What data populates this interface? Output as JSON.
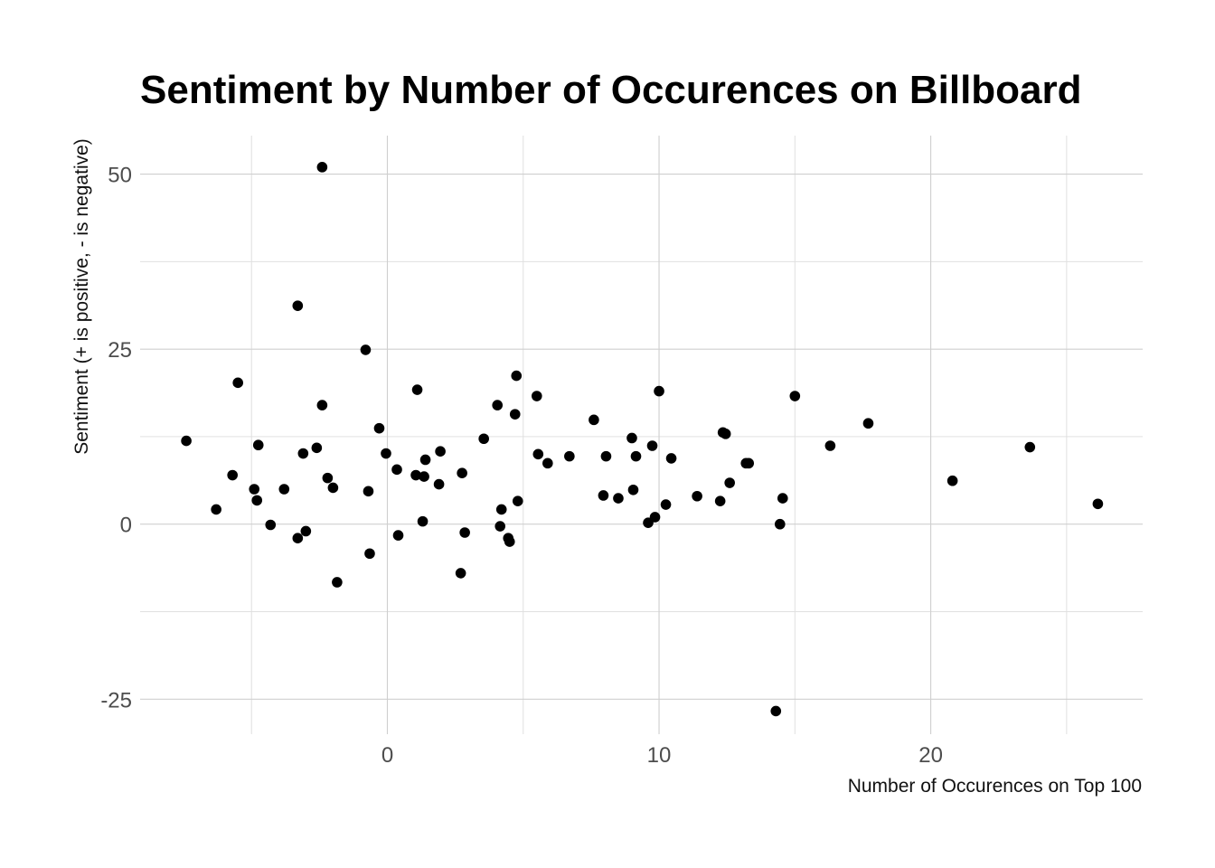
{
  "colors": {
    "background": "#ffffff",
    "points": "#000000",
    "grid": "#cfcfcf",
    "tick_text": "#4d4d4d"
  },
  "chart_data": {
    "type": "scatter",
    "title": "Sentiment by Number of Occurences on Billboard",
    "xlabel": "Number of Occurences on Top 100",
    "ylabel": "Sentiment (+ is positive, - is negative)",
    "xlim": [
      -9.1,
      27.8
    ],
    "ylim": [
      -30,
      55.5
    ],
    "x_ticks": [
      0,
      10,
      20
    ],
    "x_tick_labels": [
      "0",
      "10",
      "20"
    ],
    "x_minor_ticks": [
      -5,
      5,
      15,
      25
    ],
    "y_ticks": [
      -25,
      0,
      25,
      50
    ],
    "y_tick_labels": [
      "-25",
      "0",
      "25",
      "50"
    ],
    "y_minor_ticks": [
      -12.5,
      12.5,
      37.5
    ],
    "grid": true,
    "legend": "none",
    "points": [
      {
        "x": -7.4,
        "y": 11.9
      },
      {
        "x": -6.3,
        "y": 2.1
      },
      {
        "x": -5.7,
        "y": 7.0
      },
      {
        "x": -5.5,
        "y": 20.2
      },
      {
        "x": -4.9,
        "y": 5.0
      },
      {
        "x": -4.8,
        "y": 3.4
      },
      {
        "x": -4.75,
        "y": 11.3
      },
      {
        "x": -4.3,
        "y": -0.1
      },
      {
        "x": -3.8,
        "y": 5.0
      },
      {
        "x": -3.3,
        "y": -2.0
      },
      {
        "x": -3.3,
        "y": 31.2
      },
      {
        "x": -3.1,
        "y": 10.1
      },
      {
        "x": -3.0,
        "y": -1.0
      },
      {
        "x": -2.6,
        "y": 10.9
      },
      {
        "x": -2.4,
        "y": 17.0
      },
      {
        "x": -2.4,
        "y": 51.0
      },
      {
        "x": -2.2,
        "y": 6.6
      },
      {
        "x": -2.0,
        "y": 5.2
      },
      {
        "x": -1.85,
        "y": -8.3
      },
      {
        "x": -0.8,
        "y": 24.9
      },
      {
        "x": -0.7,
        "y": 4.7
      },
      {
        "x": -0.65,
        "y": -4.2
      },
      {
        "x": -0.3,
        "y": 13.7
      },
      {
        "x": -0.05,
        "y": 10.1
      },
      {
        "x": 0.35,
        "y": 7.8
      },
      {
        "x": 0.4,
        "y": -1.6
      },
      {
        "x": 1.05,
        "y": 7.0
      },
      {
        "x": 1.1,
        "y": 19.2
      },
      {
        "x": 1.3,
        "y": 0.4
      },
      {
        "x": 1.35,
        "y": 6.8
      },
      {
        "x": 1.4,
        "y": 9.2
      },
      {
        "x": 1.9,
        "y": 5.7
      },
      {
        "x": 1.95,
        "y": 10.4
      },
      {
        "x": 2.7,
        "y": -7.0
      },
      {
        "x": 2.75,
        "y": 7.3
      },
      {
        "x": 2.85,
        "y": -1.2
      },
      {
        "x": 3.55,
        "y": 12.2
      },
      {
        "x": 4.05,
        "y": 17.0
      },
      {
        "x": 4.15,
        "y": -0.3
      },
      {
        "x": 4.2,
        "y": 2.1
      },
      {
        "x": 4.45,
        "y": -2.0
      },
      {
        "x": 4.5,
        "y": -2.5
      },
      {
        "x": 4.7,
        "y": 15.7
      },
      {
        "x": 4.75,
        "y": 21.2
      },
      {
        "x": 4.8,
        "y": 3.3
      },
      {
        "x": 5.5,
        "y": 18.3
      },
      {
        "x": 5.55,
        "y": 10.0
      },
      {
        "x": 5.9,
        "y": 8.7
      },
      {
        "x": 6.7,
        "y": 9.7
      },
      {
        "x": 7.6,
        "y": 14.9
      },
      {
        "x": 7.95,
        "y": 4.1
      },
      {
        "x": 8.05,
        "y": 9.7
      },
      {
        "x": 8.5,
        "y": 3.7
      },
      {
        "x": 9.0,
        "y": 12.3
      },
      {
        "x": 9.05,
        "y": 4.9
      },
      {
        "x": 9.15,
        "y": 9.7
      },
      {
        "x": 9.6,
        "y": 0.2
      },
      {
        "x": 9.75,
        "y": 11.2
      },
      {
        "x": 9.85,
        "y": 1.0
      },
      {
        "x": 10.0,
        "y": 19.0
      },
      {
        "x": 10.25,
        "y": 2.8
      },
      {
        "x": 10.45,
        "y": 9.4
      },
      {
        "x": 11.4,
        "y": 4.0
      },
      {
        "x": 12.25,
        "y": 3.3
      },
      {
        "x": 12.35,
        "y": 13.1
      },
      {
        "x": 12.45,
        "y": 12.9
      },
      {
        "x": 12.6,
        "y": 5.9
      },
      {
        "x": 13.2,
        "y": 8.7
      },
      {
        "x": 13.3,
        "y": 8.7
      },
      {
        "x": 14.3,
        "y": -26.7
      },
      {
        "x": 14.45,
        "y": 0.0
      },
      {
        "x": 14.55,
        "y": 3.7
      },
      {
        "x": 15.0,
        "y": 18.3
      },
      {
        "x": 16.3,
        "y": 11.2
      },
      {
        "x": 17.7,
        "y": 14.4
      },
      {
        "x": 20.8,
        "y": 6.2
      },
      {
        "x": 23.65,
        "y": 11.0
      },
      {
        "x": 26.15,
        "y": 2.9
      }
    ]
  }
}
